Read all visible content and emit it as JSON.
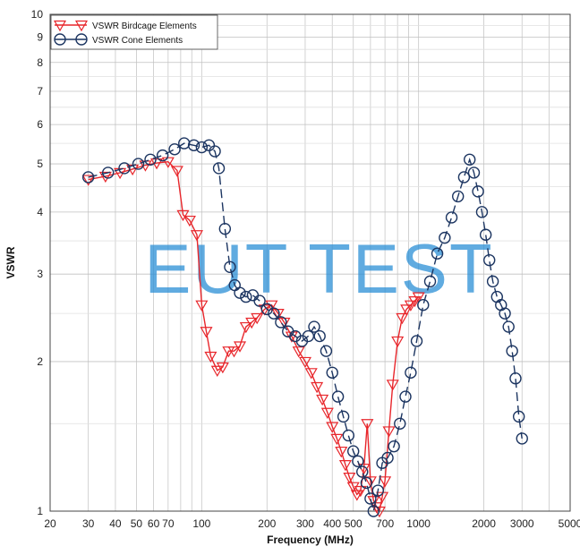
{
  "chart_data": {
    "type": "line",
    "xlabel": "Frequency (MHz)",
    "ylabel": "VSWR",
    "x_scale": "log",
    "y_scale": "log",
    "xlim": [
      20,
      5000
    ],
    "ylim": [
      1,
      10
    ],
    "x_ticks": [
      20,
      30,
      40,
      50,
      60,
      70,
      100,
      200,
      300,
      400,
      500,
      700,
      1000,
      2000,
      3000,
      5000
    ],
    "x_tick_labels": [
      "20",
      "30",
      "40",
      "50",
      "60",
      "70",
      "100",
      "200",
      "300",
      "400",
      "500",
      "700",
      "1000",
      "2000",
      "3000",
      "5000"
    ],
    "y_ticks": [
      1,
      2,
      3,
      4,
      5,
      6,
      7,
      8,
      9,
      10
    ],
    "y_tick_labels": [
      "1",
      "2",
      "3",
      "4",
      "5",
      "6",
      "7",
      "8",
      "9",
      "10"
    ],
    "grid": true,
    "legend_position": "top-left",
    "watermark": "EUT TEST",
    "series": [
      {
        "name": "VSWR Birdcage Elements",
        "color": "#e8262b",
        "marker": "triangle-down",
        "x": [
          30,
          36,
          42,
          48,
          55,
          62,
          70,
          77,
          82,
          88,
          95,
          100,
          105,
          110,
          118,
          125,
          133,
          141,
          150,
          160,
          170,
          180,
          195,
          210,
          225,
          240,
          260,
          280,
          300,
          320,
          340,
          360,
          380,
          400,
          420,
          440,
          460,
          480,
          500,
          520,
          540,
          560,
          580,
          600,
          620,
          640,
          660,
          680,
          700,
          730,
          760,
          800,
          840,
          880,
          920,
          960,
          1000
        ],
        "y": [
          4.65,
          4.72,
          4.8,
          4.88,
          4.97,
          5.02,
          5.05,
          4.85,
          3.95,
          3.85,
          3.6,
          2.6,
          2.3,
          2.05,
          1.92,
          1.95,
          2.1,
          2.1,
          2.15,
          2.35,
          2.4,
          2.45,
          2.55,
          2.6,
          2.5,
          2.4,
          2.25,
          2.1,
          2.0,
          1.9,
          1.78,
          1.68,
          1.58,
          1.48,
          1.4,
          1.32,
          1.24,
          1.17,
          1.12,
          1.08,
          1.1,
          1.22,
          1.5,
          1.15,
          1.05,
          1.02,
          1.0,
          1.07,
          1.15,
          1.45,
          1.8,
          2.2,
          2.45,
          2.55,
          2.6,
          2.65,
          2.7
        ]
      },
      {
        "name": "VSWR Cone Elements",
        "color": "#1c3561",
        "marker": "circle",
        "x": [
          30,
          37,
          44,
          51,
          58,
          66,
          75,
          83,
          92,
          100,
          108,
          115,
          120,
          128,
          135,
          142,
          150,
          160,
          172,
          185,
          200,
          215,
          232,
          250,
          270,
          290,
          310,
          330,
          350,
          375,
          400,
          425,
          450,
          475,
          500,
          525,
          550,
          575,
          600,
          620,
          650,
          680,
          720,
          770,
          820,
          870,
          920,
          980,
          1050,
          1130,
          1220,
          1320,
          1420,
          1520,
          1620,
          1720,
          1800,
          1880,
          1960,
          2040,
          2120,
          2200,
          2300,
          2400,
          2500,
          2600,
          2700,
          2800,
          2900,
          3000
        ],
        "y": [
          4.7,
          4.8,
          4.9,
          5.0,
          5.1,
          5.2,
          5.35,
          5.5,
          5.45,
          5.4,
          5.45,
          5.3,
          4.9,
          3.7,
          3.1,
          2.85,
          2.75,
          2.7,
          2.72,
          2.65,
          2.55,
          2.5,
          2.4,
          2.3,
          2.25,
          2.2,
          2.25,
          2.35,
          2.25,
          2.1,
          1.9,
          1.7,
          1.55,
          1.42,
          1.32,
          1.26,
          1.2,
          1.14,
          1.06,
          1.0,
          1.1,
          1.25,
          1.28,
          1.35,
          1.5,
          1.7,
          1.9,
          2.2,
          2.6,
          2.9,
          3.3,
          3.55,
          3.9,
          4.3,
          4.7,
          5.1,
          4.8,
          4.4,
          4.0,
          3.6,
          3.2,
          2.9,
          2.7,
          2.6,
          2.5,
          2.35,
          2.1,
          1.85,
          1.55,
          1.4
        ]
      }
    ]
  }
}
